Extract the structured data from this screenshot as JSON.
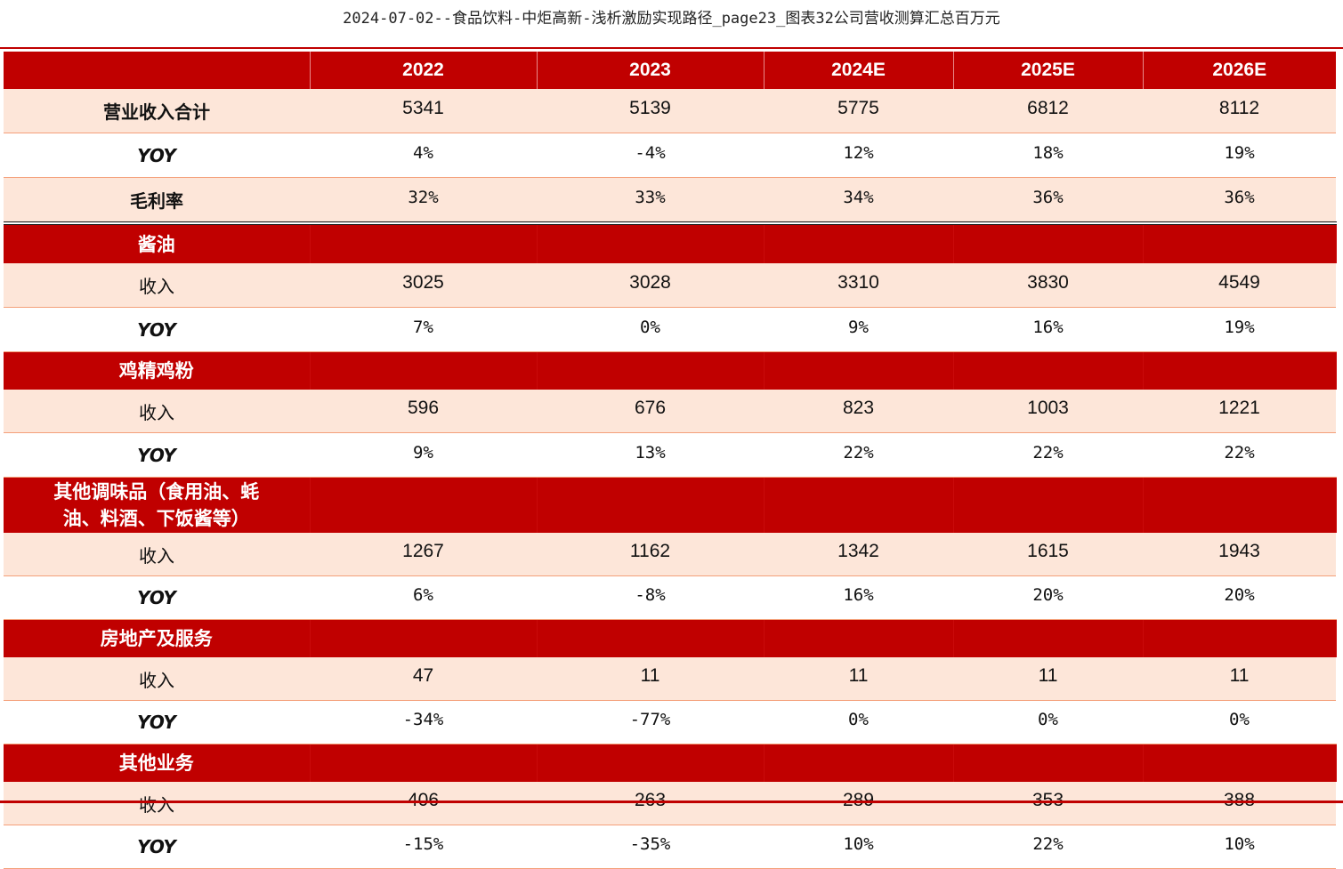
{
  "title": "2024-07-02--食品饮料-中炬高新-浅析激励实现路径_page23_图表32公司营收测算汇总百万元",
  "colors": {
    "header_red": "#c00000",
    "row_shade": "#fde6d9",
    "rule": "#f4a07a"
  },
  "table": {
    "columns": [
      "2022",
      "2023",
      "2024E",
      "2025E",
      "2026E"
    ],
    "summary": {
      "revenue_total": {
        "label": "营业收入合计",
        "values": [
          "5341",
          "5139",
          "5775",
          "6812",
          "8112"
        ]
      },
      "yoy": {
        "label": "YOY",
        "values": [
          "4%",
          "-4%",
          "12%",
          "18%",
          "19%"
        ]
      },
      "gross_margin": {
        "label": "毛利率",
        "values": [
          "32%",
          "33%",
          "34%",
          "36%",
          "36%"
        ]
      }
    },
    "segments": [
      {
        "name": "酱油",
        "revenue_label": "收入",
        "revenue": [
          "3025",
          "3028",
          "3310",
          "3830",
          "4549"
        ],
        "yoy_label": "YOY",
        "yoy": [
          "7%",
          "0%",
          "9%",
          "16%",
          "19%"
        ]
      },
      {
        "name": "鸡精鸡粉",
        "revenue_label": "收入",
        "revenue": [
          "596",
          "676",
          "823",
          "1003",
          "1221"
        ],
        "yoy_label": "YOY",
        "yoy": [
          "9%",
          "13%",
          "22%",
          "22%",
          "22%"
        ]
      },
      {
        "name_line1": "其他调味品（食用油、蚝",
        "name_line2": "油、料酒、下饭酱等）",
        "revenue_label": "收入",
        "revenue": [
          "1267",
          "1162",
          "1342",
          "1615",
          "1943"
        ],
        "yoy_label": "YOY",
        "yoy": [
          "6%",
          "-8%",
          "16%",
          "20%",
          "20%"
        ]
      },
      {
        "name": "房地产及服务",
        "revenue_label": "收入",
        "revenue": [
          "47",
          "11",
          "11",
          "11",
          "11"
        ],
        "yoy_label": "YOY",
        "yoy": [
          "-34%",
          "-77%",
          "0%",
          "0%",
          "0%"
        ]
      },
      {
        "name": "其他业务",
        "revenue_label": "收入",
        "revenue": [
          "406",
          "263",
          "289",
          "353",
          "388"
        ],
        "yoy_label": "YOY",
        "yoy": [
          "-15%",
          "-35%",
          "10%",
          "22%",
          "10%"
        ]
      }
    ]
  }
}
